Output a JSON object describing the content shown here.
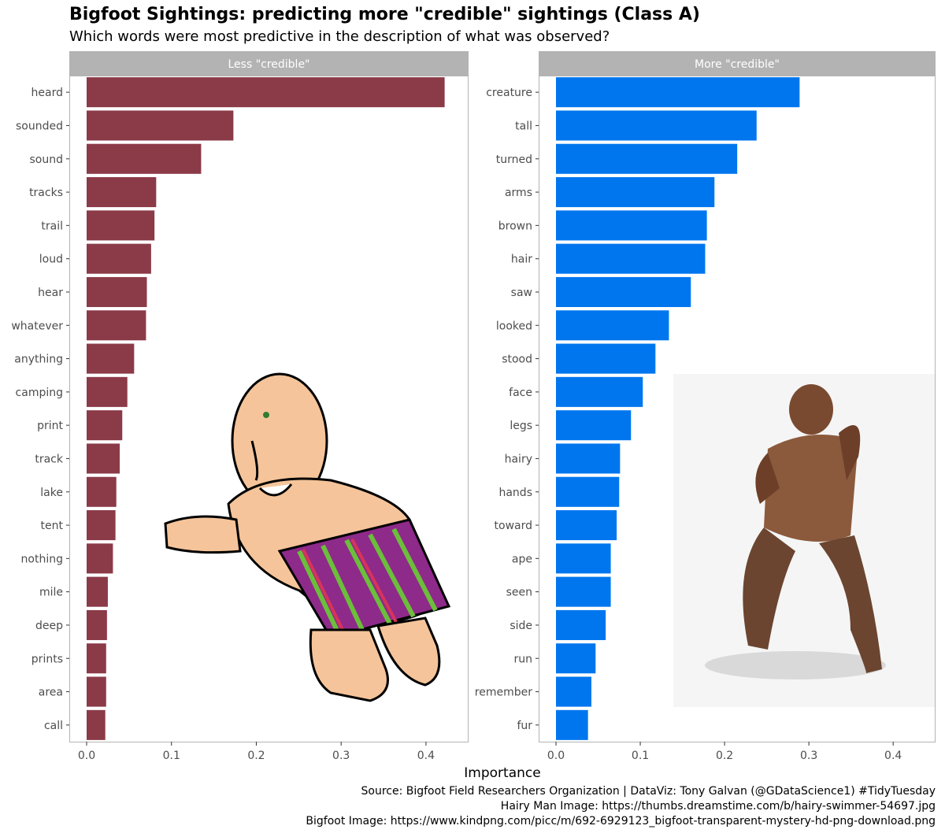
{
  "title": "Bigfoot Sightings: predicting more \"credible\" sightings (Class A)",
  "subtitle": "Which words were most predictive in the description of what was observed?",
  "caption": {
    "line1": "Source: Bigfoot Field Researchers Organization  |  DataViz: Tony Galvan (@GDataScience1) #TidyTuesday",
    "line2": "Hairy Man Image: https://thumbs.dreamstime.com/b/hairy-swimmer-54697.jpg",
    "line3": "Bigfoot Image: https://www.kindpng.com/picc/m/692-6929123_bigfoot-transparent-mystery-hd-png-download.png"
  },
  "illustrations": {
    "left": "hairy-swimmer-cartoon",
    "right": "bigfoot-figure"
  },
  "chart_data": {
    "type": "bar",
    "orientation": "horizontal",
    "xlabel": "Importance",
    "xlim": [
      0,
      0.44
    ],
    "xticks": [
      "0.0",
      "0.1",
      "0.2",
      "0.3",
      "0.4"
    ],
    "grid": false,
    "panels": [
      {
        "strip": "Less \"credible\"",
        "color": "#8B3A48",
        "categories": [
          "heard",
          "sounded",
          "sound",
          "tracks",
          "trail",
          "loud",
          "hear",
          "whatever",
          "anything",
          "camping",
          "print",
          "track",
          "lake",
          "tent",
          "nothing",
          "mile",
          "deep",
          "prints",
          "area",
          "call"
        ],
        "values": [
          0.422,
          0.173,
          0.135,
          0.082,
          0.08,
          0.076,
          0.071,
          0.07,
          0.056,
          0.048,
          0.042,
          0.039,
          0.035,
          0.034,
          0.031,
          0.025,
          0.024,
          0.023,
          0.023,
          0.022
        ]
      },
      {
        "strip": "More \"credible\"",
        "color": "#0076EE",
        "categories": [
          "creature",
          "tall",
          "turned",
          "arms",
          "brown",
          "hair",
          "saw",
          "looked",
          "stood",
          "face",
          "legs",
          "hairy",
          "hands",
          "toward",
          "ape",
          "seen",
          "side",
          "run",
          "remember",
          "fur"
        ],
        "values": [
          0.289,
          0.238,
          0.215,
          0.188,
          0.179,
          0.177,
          0.16,
          0.134,
          0.118,
          0.103,
          0.089,
          0.076,
          0.075,
          0.072,
          0.065,
          0.065,
          0.059,
          0.047,
          0.042,
          0.038
        ]
      }
    ]
  }
}
